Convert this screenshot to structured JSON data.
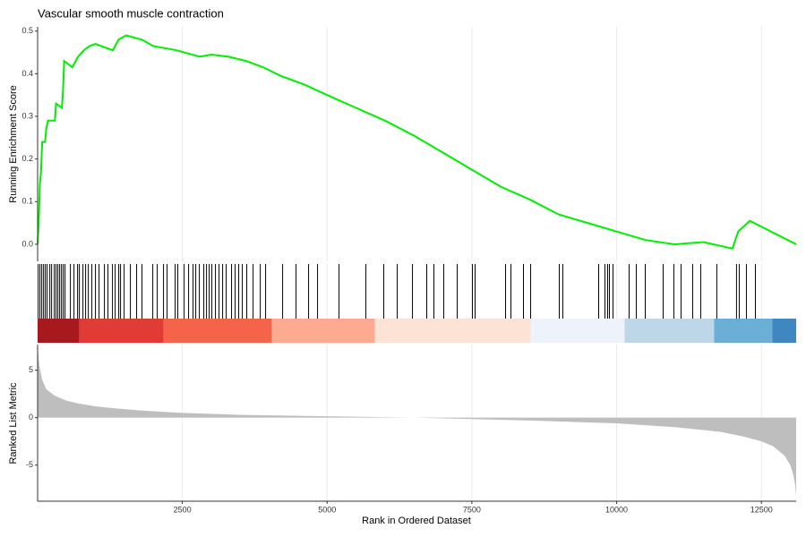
{
  "chart_data": [
    {
      "type": "line",
      "title": "Vascular smooth muscle contraction",
      "ylabel": "Running Enrichment Score",
      "color": "#00ee00",
      "grid": true,
      "x": [
        1,
        20,
        40,
        60,
        80,
        130,
        150,
        180,
        300,
        320,
        420,
        440,
        460,
        600,
        700,
        800,
        900,
        1000,
        1300,
        1400,
        1530,
        1800,
        2000,
        2400,
        2800,
        3000,
        3300,
        3600,
        3900,
        4200,
        4600,
        5000,
        5500,
        6000,
        6500,
        7000,
        7500,
        8000,
        8500,
        9000,
        9500,
        10000,
        10500,
        11000,
        11500,
        12000,
        12100,
        12300,
        13100
      ],
      "values": [
        0,
        0.05,
        0.14,
        0.17,
        0.24,
        0.24,
        0.27,
        0.29,
        0.29,
        0.33,
        0.32,
        0.36,
        0.43,
        0.415,
        0.44,
        0.455,
        0.465,
        0.47,
        0.455,
        0.48,
        0.49,
        0.48,
        0.465,
        0.455,
        0.44,
        0.445,
        0.44,
        0.43,
        0.415,
        0.395,
        0.375,
        0.35,
        0.32,
        0.29,
        0.255,
        0.215,
        0.175,
        0.135,
        0.105,
        0.07,
        0.05,
        0.03,
        0.01,
        0,
        0.005,
        -0.01,
        0.03,
        0.055,
        0
      ],
      "xlim": [
        1,
        13100
      ],
      "ylim": [
        -0.04,
        0.51
      ],
      "yticks": [
        {
          "value": 0,
          "label": "0.0"
        },
        0.1,
        0.2,
        0.3,
        0.4,
        0.5
      ]
    },
    {
      "type": "rug",
      "color": "#000000",
      "grid": true,
      "xlim": [
        1,
        13100
      ],
      "values": [
        11,
        42,
        73,
        104,
        134,
        165,
        212,
        243,
        289,
        320,
        351,
        382,
        413,
        444,
        475,
        567,
        629,
        691,
        722,
        784,
        830,
        877,
        938,
        1000,
        1062,
        1155,
        1216,
        1294,
        1340,
        1402,
        1433,
        1495,
        1603,
        1711,
        1804,
        1990,
        2067,
        2175,
        2237,
        2376,
        2422,
        2531,
        2608,
        2685,
        2732,
        2794,
        2871,
        2918,
        2964,
        3010,
        3072,
        3134,
        3196,
        3258,
        3350,
        3412,
        3474,
        3536,
        3613,
        3722,
        3846,
        3938,
        4232,
        4464,
        4680,
        4835,
        5206,
        5670,
        5979,
        6211,
        6474,
        6721,
        6845,
        7015,
        7247,
        7510,
        7556,
        8082,
        8175,
        8391,
        8515,
        9009,
        9071,
        9690,
        9798,
        9844,
        9875,
        9937,
        10215,
        10339,
        10494,
        10803,
        10988,
        11112,
        11313,
        11452,
        11730,
        12070,
        12117,
        12241,
        12396
      ],
      "band": {
        "edges": [
          1,
          722,
          2175,
          4046,
          5824,
          8515,
          10138,
          11684,
          12689,
          13100
        ],
        "colors": [
          "#a8191e",
          "#e03b35",
          "#f6634b",
          "#fcab91",
          "#fde3d6",
          "#eef3fb",
          "#bdd7e8",
          "#6baed6",
          "#3f87c1"
        ]
      }
    },
    {
      "type": "area",
      "ylabel": "Ranked List Metric",
      "xlabel": "Rank in Ordered Dataset",
      "color": "#bebebe",
      "grid": true,
      "x": [
        1,
        30,
        80,
        150,
        300,
        500,
        700,
        1000,
        1300,
        1800,
        2500,
        3500,
        5000,
        6500,
        7500,
        8500,
        9500,
        10000,
        10500,
        11000,
        11500,
        11800,
        12200,
        12500,
        12700,
        12900,
        13000,
        13050,
        13080,
        13100
      ],
      "values": [
        7.5,
        5.5,
        4,
        3,
        2.3,
        1.8,
        1.5,
        1.2,
        1,
        0.75,
        0.5,
        0.3,
        0.15,
        0,
        -0.15,
        -0.3,
        -0.5,
        -0.6,
        -0.8,
        -1,
        -1.3,
        -1.5,
        -2,
        -2.5,
        -3,
        -4,
        -5,
        -6,
        -7,
        -8.2
      ],
      "xlim": [
        1,
        13100
      ],
      "ylim": [
        -8.8,
        7.7
      ],
      "yticks": [
        -5,
        0,
        5
      ],
      "xticks": [
        2500,
        5000,
        7500,
        10000,
        12500
      ]
    }
  ]
}
